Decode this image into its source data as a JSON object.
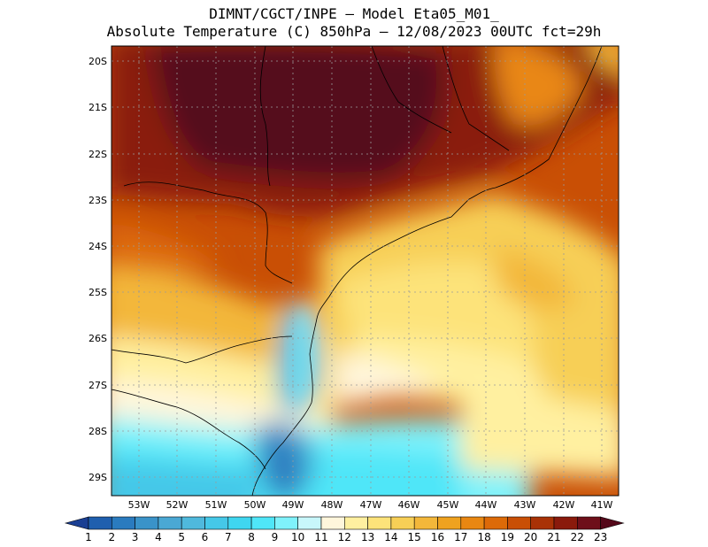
{
  "title": {
    "line1": "DIMNT/CGCT/INPE —  Model Eta05_M01_",
    "line2": "Absolute Temperature (C) 850hPa —  12/08/2023 00UTC fct=29h"
  },
  "map": {
    "lat_labels": [
      "20S",
      "21S",
      "22S",
      "23S",
      "24S",
      "25S",
      "26S",
      "27S",
      "28S",
      "29S"
    ],
    "lon_labels": [
      "53W",
      "52W",
      "51W",
      "50W",
      "49W",
      "48W",
      "47W",
      "46W",
      "45W",
      "44W",
      "43W",
      "42W",
      "41W"
    ]
  },
  "colorbar": {
    "labels": [
      "1",
      "2",
      "3",
      "4",
      "5",
      "6",
      "7",
      "8",
      "9",
      "10",
      "11",
      "12",
      "13",
      "14",
      "15",
      "16",
      "17",
      "18",
      "19",
      "20",
      "21",
      "22",
      "23"
    ],
    "colors": [
      "#1a3f93",
      "#1f5fae",
      "#2a7bbf",
      "#3a93c9",
      "#4aa8d4",
      "#4fb9dd",
      "#45c8e8",
      "#3fd6f0",
      "#4fe6f8",
      "#7ff2fb",
      "#c8f7fb",
      "#fff6dc",
      "#fff0a0",
      "#fde37a",
      "#f7cf56",
      "#f3b73a",
      "#efa21f",
      "#e98712",
      "#dd6a08",
      "#c94f05",
      "#a93206",
      "#8a1a0c",
      "#6e0f1a",
      "#55081a"
    ]
  }
}
